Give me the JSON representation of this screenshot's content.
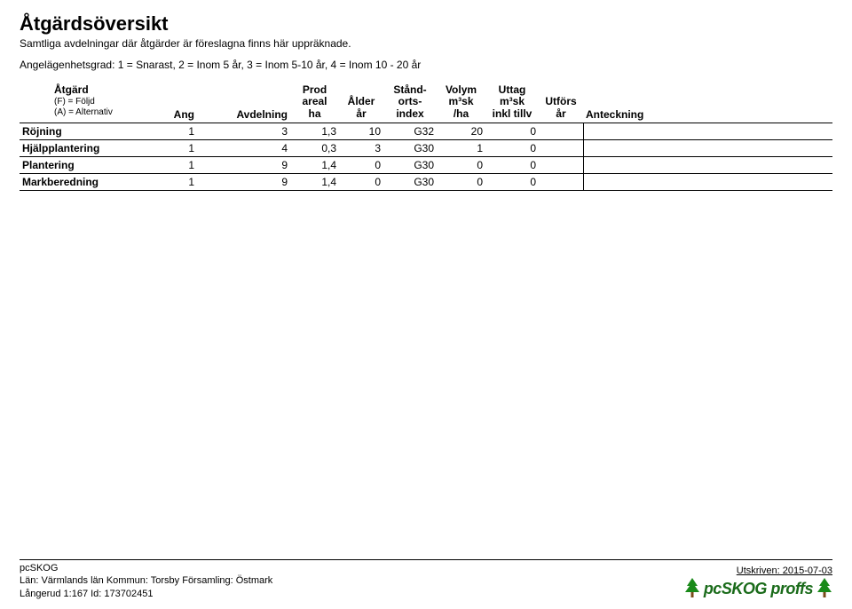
{
  "title": "Åtgärdsöversikt",
  "subtitle": "Samtliga avdelningar där åtgärder är föreslagna finns här uppräknade.",
  "legend": "Angelägenhetsgrad: 1 = Snarast, 2 = Inom 5 år, 3 = Inom 5-10 år, 4 = Inom 10 - 20 år",
  "columns": {
    "atgard": {
      "label": "Åtgärd",
      "sub1": "(F) = Följd",
      "sub2": "(A) = Alternativ"
    },
    "ang": "Ang",
    "avdelning": "Avdelning",
    "prod": {
      "l1": "Prod",
      "l2": "areal",
      "l3": "ha"
    },
    "alder": {
      "l1": "Ålder",
      "l2": "år"
    },
    "stand": {
      "l1": "Stånd-",
      "l2": "orts-",
      "l3": "index"
    },
    "volym": {
      "l1": "Volym",
      "l2": "m³sk",
      "l3": "/ha"
    },
    "uttag": {
      "l1": "Uttag",
      "l2": "m³sk",
      "l3": "inkl tillv"
    },
    "utfors": {
      "l1": "Utförs",
      "l2": "år"
    },
    "anteckning": "Anteckning"
  },
  "rows": [
    {
      "atgard": "Röjning",
      "ang": "1",
      "avd": "3",
      "prod": "1,3",
      "alder": "10",
      "stand": "G32",
      "volym": "20",
      "uttag": "0",
      "utfors": "",
      "ant": ""
    },
    {
      "atgard": "Hjälpplantering",
      "ang": "1",
      "avd": "4",
      "prod": "0,3",
      "alder": "3",
      "stand": "G30",
      "volym": "1",
      "uttag": "0",
      "utfors": "",
      "ant": ""
    },
    {
      "atgard": "Plantering",
      "ang": "1",
      "avd": "9",
      "prod": "1,4",
      "alder": "0",
      "stand": "G30",
      "volym": "0",
      "uttag": "0",
      "utfors": "",
      "ant": ""
    },
    {
      "atgard": "Markberedning",
      "ang": "1",
      "avd": "9",
      "prod": "1,4",
      "alder": "0",
      "stand": "G30",
      "volym": "0",
      "uttag": "0",
      "utfors": "",
      "ant": ""
    }
  ],
  "footer": {
    "app": "pcSKOG",
    "line2": "Län: Värmlands län   Kommun: Torsby   Församling: Östmark",
    "line3": "Långerud 1:167 Id: 173702451",
    "printed": "Utskriven: 2015-07-03",
    "logo_text": "pcSKOG proffs",
    "tree_color": "#1a8a1a",
    "trunk_color": "#7a4a1a"
  },
  "colors": {
    "text": "#000000",
    "border": "#000000",
    "background": "#ffffff"
  }
}
